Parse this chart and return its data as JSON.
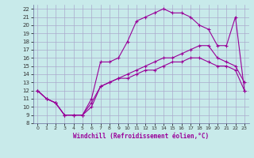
{
  "xlabel": "Windchill (Refroidissement éolien,°C)",
  "bg_color": "#c8eaea",
  "grid_color": "#aaaacc",
  "line_color": "#990099",
  "xlim": [
    -0.5,
    23.5
  ],
  "ylim": [
    8,
    22.5
  ],
  "xticks": [
    0,
    1,
    2,
    3,
    4,
    5,
    6,
    7,
    8,
    9,
    10,
    11,
    12,
    13,
    14,
    15,
    16,
    17,
    18,
    19,
    20,
    21,
    22,
    23
  ],
  "yticks": [
    8,
    9,
    10,
    11,
    12,
    13,
    14,
    15,
    16,
    17,
    18,
    19,
    20,
    21,
    22
  ],
  "line2_x": [
    0,
    1,
    2,
    3,
    4,
    5,
    6,
    7,
    8,
    9,
    10,
    11,
    12,
    13,
    14,
    15,
    16,
    17,
    18,
    19,
    20,
    21,
    22,
    23
  ],
  "line2_y": [
    12,
    11,
    10.5,
    9,
    9,
    9,
    11,
    15.5,
    15.5,
    16,
    18,
    20.5,
    21,
    21.5,
    22,
    21.5,
    21.5,
    21,
    20,
    19.5,
    17.5,
    17.5,
    21,
    12
  ],
  "line3_x": [
    0,
    1,
    2,
    3,
    4,
    5,
    6,
    7,
    8,
    9,
    10,
    11,
    12,
    13,
    14,
    15,
    16,
    17,
    18,
    19,
    20,
    21,
    22,
    23
  ],
  "line3_y": [
    12,
    11,
    10.5,
    9,
    9,
    9,
    10,
    12.5,
    13,
    13.5,
    13.5,
    14,
    14.5,
    14.5,
    15,
    15.5,
    15.5,
    16,
    16,
    15.5,
    15,
    15,
    14.5,
    12
  ],
  "line1_x": [
    0,
    1,
    2,
    3,
    4,
    5,
    6,
    7,
    8,
    9,
    10,
    11,
    12,
    13,
    14,
    15,
    16,
    17,
    18,
    19,
    20,
    21,
    22,
    23
  ],
  "line1_y": [
    12,
    11,
    10.5,
    9,
    9,
    9,
    10.5,
    12.5,
    13,
    13.5,
    14,
    14.5,
    15,
    15.5,
    16,
    16,
    16.5,
    17,
    17.5,
    17.5,
    16,
    15.5,
    15,
    13
  ]
}
